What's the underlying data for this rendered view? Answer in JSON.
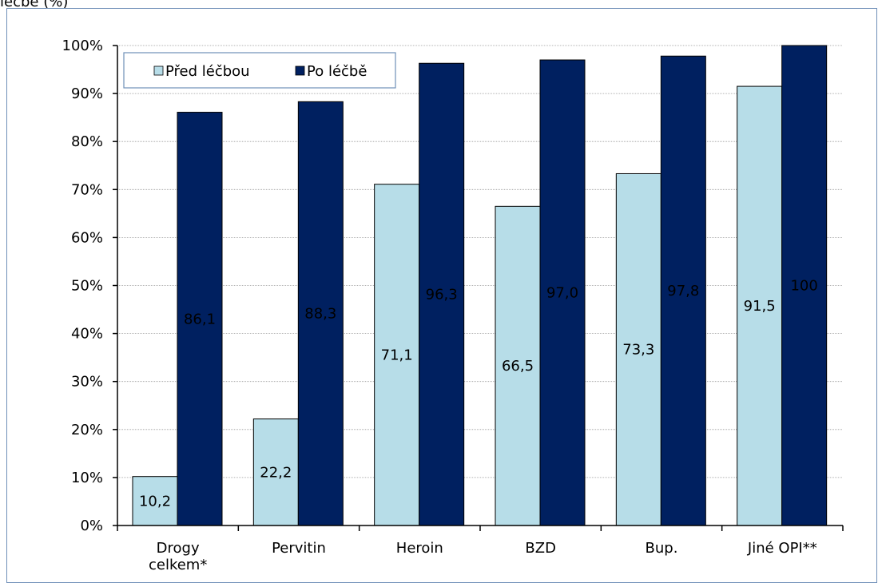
{
  "caption": "léčbě (%)",
  "chart_data": {
    "type": "bar",
    "categories": [
      [
        "Drogy",
        "celkem*"
      ],
      [
        "Pervitin"
      ],
      [
        "Heroin"
      ],
      [
        "BZD"
      ],
      [
        "Bup."
      ],
      [
        "Jiné OPI**"
      ]
    ],
    "series": [
      {
        "name": "Před léčbou",
        "values": [
          10.2,
          22.2,
          71.1,
          66.5,
          73.3,
          91.5
        ],
        "labels": [
          "10,2",
          "22,2",
          "71,1",
          "66,5",
          "73,3",
          "91,5"
        ]
      },
      {
        "name": "Po léčbě",
        "values": [
          86.1,
          88.3,
          96.3,
          97.0,
          97.8,
          100
        ],
        "labels": [
          "86,1",
          "88,3",
          "96,3",
          "97,0",
          "97,8",
          "100"
        ]
      }
    ],
    "yticks": [
      "0%",
      "10%",
      "20%",
      "30%",
      "40%",
      "50%",
      "60%",
      "70%",
      "80%",
      "90%",
      "100%"
    ],
    "ylim": [
      0,
      100
    ],
    "legend_position": "top-left",
    "grid": true,
    "colors": {
      "series0": "#b7dde8",
      "series1": "#002060",
      "grid": "#9a9a9a"
    }
  }
}
